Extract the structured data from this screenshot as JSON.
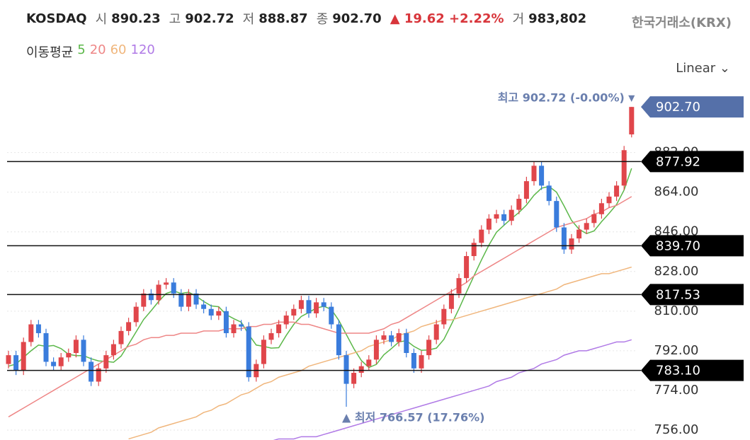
{
  "header": {
    "symbol": "KOSDAQ",
    "items": [
      {
        "label": "시",
        "value": "890.23"
      },
      {
        "label": "고",
        "value": "902.72"
      },
      {
        "label": "저",
        "value": "888.87"
      },
      {
        "label": "종",
        "value": "902.70"
      }
    ],
    "change": "▲ 19.62 +2.22%",
    "volume_label": "거",
    "volume": "983,802",
    "source": "한국거래소(KRX)",
    "ma_title": "이동평균",
    "scale_mode": "Linear"
  },
  "chart_data": {
    "type": "candlestick",
    "up_color": "#e0464b",
    "down_color": "#3a7cdc",
    "ylim": [
      751.5,
      909.5
    ],
    "yticks": [
      {
        "value": 756,
        "label": "756.00"
      },
      {
        "value": 774,
        "label": "774.00"
      },
      {
        "value": 792,
        "label": "792.00"
      },
      {
        "value": 810,
        "label": "810.00"
      },
      {
        "value": 828,
        "label": "828.00"
      },
      {
        "value": 846,
        "label": "846.00"
      },
      {
        "value": 864,
        "label": "864.00"
      },
      {
        "value": 882,
        "label": "882.00"
      }
    ],
    "grid": true,
    "open": [
      786,
      790,
      783,
      796,
      804,
      800,
      787,
      785,
      789,
      791,
      797,
      787,
      778,
      784,
      790,
      795,
      801,
      805,
      812,
      818,
      815,
      822,
      823,
      818,
      812,
      818,
      813,
      811,
      808,
      810,
      800,
      804,
      803,
      780,
      786,
      797,
      800,
      804,
      808,
      811,
      815,
      809,
      814,
      812,
      804,
      790,
      777,
      782,
      785,
      788,
      797,
      799,
      796,
      800,
      791,
      784,
      790,
      797,
      804,
      811,
      818,
      825,
      835,
      841,
      847,
      852,
      854,
      851,
      856,
      861,
      869,
      876,
      867,
      860,
      848,
      838,
      843,
      847,
      850,
      854,
      859,
      862,
      867,
      890.23
    ],
    "high": [
      792,
      792,
      798,
      806,
      806,
      802,
      789,
      791,
      793,
      799,
      799,
      789,
      786,
      792,
      797,
      803,
      807,
      814,
      820,
      820,
      824,
      825,
      825,
      820,
      820,
      820,
      815,
      813,
      812,
      812,
      806,
      806,
      805,
      788,
      799,
      802,
      806,
      810,
      813,
      817,
      817,
      816,
      816,
      814,
      806,
      792,
      784,
      787,
      790,
      799,
      801,
      801,
      802,
      802,
      793,
      792,
      799,
      806,
      813,
      820,
      827,
      837,
      843,
      849,
      854,
      856,
      856,
      858,
      863,
      871,
      878,
      878,
      869,
      862,
      850,
      845,
      849,
      852,
      856,
      861,
      864,
      869,
      885,
      902.72
    ],
    "low": [
      784,
      781,
      781,
      794,
      798,
      785,
      783,
      783,
      787,
      789,
      785,
      776,
      776,
      782,
      788,
      793,
      799,
      803,
      810,
      813,
      813,
      820,
      816,
      810,
      810,
      811,
      809,
      806,
      806,
      798,
      798,
      801,
      778,
      778,
      784,
      795,
      798,
      802,
      806,
      809,
      807,
      807,
      810,
      802,
      788,
      766.57,
      775,
      780,
      783,
      786,
      795,
      794,
      794,
      789,
      782,
      782,
      788,
      795,
      802,
      809,
      816,
      823,
      833,
      839,
      845,
      850,
      849,
      849,
      854,
      859,
      867,
      865,
      858,
      846,
      836,
      836,
      841,
      845,
      848,
      852,
      857,
      860,
      865,
      888.87
    ],
    "close": [
      790,
      783,
      796,
      804,
      800,
      787,
      785,
      789,
      791,
      797,
      787,
      778,
      784,
      790,
      795,
      801,
      805,
      812,
      818,
      815,
      822,
      823,
      818,
      812,
      818,
      813,
      811,
      808,
      810,
      800,
      804,
      803,
      780,
      786,
      797,
      800,
      804,
      808,
      811,
      815,
      809,
      814,
      812,
      804,
      790,
      777,
      782,
      785,
      788,
      797,
      799,
      796,
      800,
      791,
      784,
      790,
      797,
      804,
      811,
      818,
      825,
      835,
      841,
      847,
      852,
      854,
      851,
      856,
      861,
      869,
      876,
      867,
      860,
      848,
      838,
      843,
      847,
      850,
      854,
      859,
      862,
      867,
      883.08,
      902.7
    ],
    "series": [
      {
        "name": "5",
        "color": "#5cb84a",
        "values": [
          785,
          786,
          789,
          792,
          794.6,
          794,
          794.4,
          793,
          790.4,
          789.8,
          789.8,
          788.4,
          787.4,
          787.2,
          786.8,
          789.6,
          795,
          800.6,
          806.2,
          810.2,
          814.4,
          818,
          819.2,
          818,
          818.6,
          816.8,
          814.4,
          812.4,
          812,
          808.4,
          806.6,
          805,
          799.4,
          794.6,
          794,
          793.2,
          793.4,
          799,
          804,
          807.6,
          809.4,
          811.4,
          812.2,
          810.8,
          805.8,
          799.4,
          793,
          787.6,
          784.4,
          785.8,
          790.2,
          793,
          796,
          796.6,
          794,
          792.2,
          792.4,
          793.2,
          797.2,
          804,
          811,
          818.6,
          826,
          833.2,
          840,
          845.8,
          849,
          852,
          854.8,
          858.2,
          862.6,
          865.8,
          866.6,
          864,
          857.8,
          851.2,
          847.2,
          845.2,
          846.4,
          850.6,
          854.4,
          858.4,
          865,
          874.8
        ]
      },
      {
        "name": "20",
        "color": "#ee8686",
        "values": [
          762,
          764,
          766,
          768,
          770,
          772,
          774,
          776,
          778,
          780,
          782,
          784,
          786,
          788,
          790,
          792,
          794,
          795,
          797,
          798,
          798,
          799,
          799,
          800,
          800,
          800,
          801,
          801,
          801,
          802,
          802,
          802,
          803,
          803,
          804,
          804,
          805,
          805,
          805,
          804,
          804,
          803,
          802,
          801,
          800,
          800,
          800,
          800,
          800,
          801,
          802,
          804,
          805,
          807,
          809,
          811,
          813,
          815,
          817,
          819,
          821,
          823,
          826,
          828,
          830,
          832,
          834,
          836,
          838,
          840,
          842,
          844,
          846,
          848,
          849,
          850,
          851,
          852,
          854,
          855,
          857,
          858,
          860,
          862
        ]
      },
      {
        "name": "60",
        "color": "#f0b67c",
        "values": [
          null,
          null,
          null,
          null,
          null,
          null,
          null,
          null,
          null,
          null,
          null,
          null,
          null,
          null,
          null,
          null,
          752,
          753,
          754,
          755,
          757,
          758,
          759,
          760,
          761,
          762,
          764,
          765,
          767,
          768,
          770,
          772,
          773,
          775,
          777,
          778,
          780,
          781,
          782,
          783,
          785,
          786,
          787,
          788,
          789,
          790,
          791,
          792,
          794,
          795,
          796,
          797,
          799,
          800,
          801,
          803,
          804,
          805,
          806,
          806,
          807,
          808,
          809,
          810,
          811,
          812,
          813,
          814,
          815,
          816,
          817,
          818,
          819,
          820,
          822,
          823,
          824,
          825,
          826,
          827,
          827,
          828,
          829,
          830
        ]
      },
      {
        "name": "120",
        "color": "#b07ae6",
        "values": [
          null,
          null,
          null,
          null,
          null,
          null,
          null,
          null,
          null,
          null,
          null,
          null,
          null,
          null,
          null,
          null,
          null,
          null,
          null,
          null,
          null,
          null,
          null,
          null,
          null,
          null,
          null,
          null,
          null,
          null,
          null,
          null,
          null,
          null,
          751,
          751,
          752,
          752,
          752,
          753,
          753,
          753,
          754,
          755,
          756,
          757,
          758,
          759,
          760,
          761,
          762,
          763,
          764,
          765,
          766,
          767,
          768,
          769,
          770,
          771,
          772,
          773,
          774,
          775,
          776,
          778,
          779,
          780,
          782,
          783,
          784,
          786,
          787,
          788,
          790,
          791,
          792,
          792,
          793,
          794,
          795,
          796,
          796,
          797
        ]
      }
    ],
    "levels": [
      {
        "value": 877.92,
        "label": "877.92"
      },
      {
        "value": 839.7,
        "label": "839.70"
      },
      {
        "value": 817.53,
        "label": "817.53"
      },
      {
        "value": 783.1,
        "label": "783.10"
      }
    ],
    "last_price": {
      "value": 902.7,
      "label": "902.70",
      "color": "#5570a9"
    },
    "high_annotation": "최고 902.72 (-0.00%)",
    "low_annotation": "▲ 최저 766.57 (17.76%)"
  }
}
